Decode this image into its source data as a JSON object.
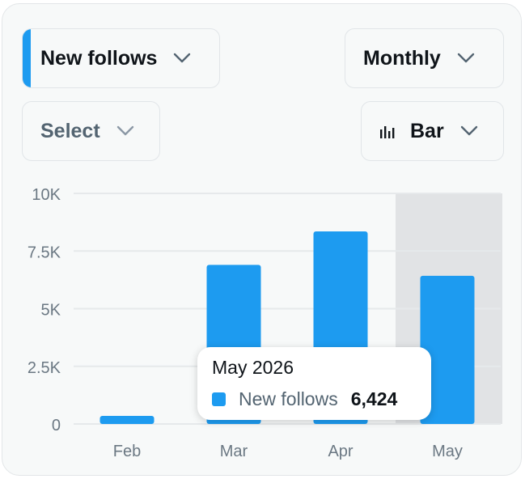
{
  "controls": {
    "metric": {
      "label": "New follows"
    },
    "period": {
      "label": "Monthly"
    },
    "compare": {
      "label": "Select"
    },
    "chart_type": {
      "label": "Bar"
    }
  },
  "icons": {
    "chevron": "chevron-down-icon",
    "chart_type": "bar-chart-icon"
  },
  "colors": {
    "bar": "#1d9bf0",
    "highlight": "#e1e3e5",
    "grid": "#e6e9eb",
    "axis_text": "#6b7883"
  },
  "chart_data": {
    "type": "bar",
    "categories": [
      "Feb",
      "Mar",
      "Apr",
      "May"
    ],
    "series": [
      {
        "name": "New follows",
        "values": [
          350,
          6900,
          8350,
          6424
        ]
      }
    ],
    "ylim": [
      0,
      10000
    ],
    "yticks": [
      0,
      2500,
      5000,
      7500,
      10000
    ],
    "ytick_labels": [
      "0",
      "2.5K",
      "5K",
      "7.5K",
      "10K"
    ],
    "highlighted_category": "May",
    "grid": true
  },
  "tooltip": {
    "title": "May 2026",
    "series_name": "New follows",
    "value": "6,424"
  }
}
